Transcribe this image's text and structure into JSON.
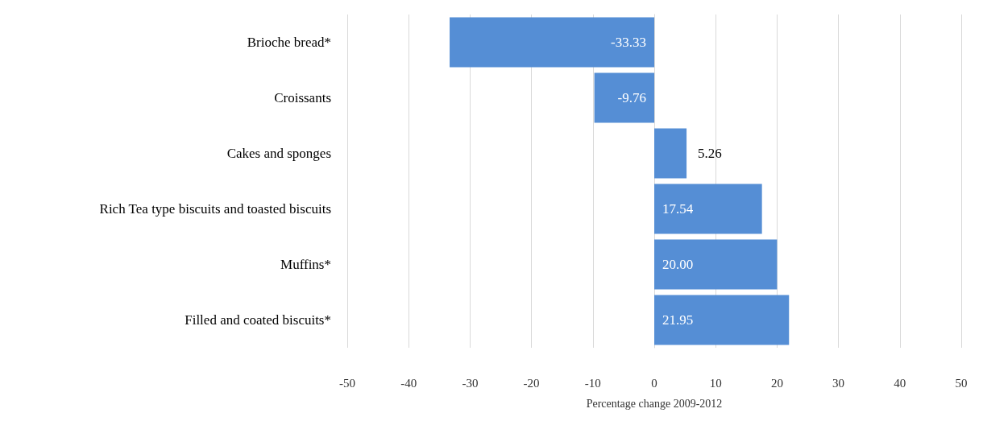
{
  "chart_data": {
    "type": "bar",
    "orientation": "horizontal",
    "xlabel": "Percentage change 2009-2012",
    "categories": [
      "Brioche bread*",
      "Croissants",
      "Cakes and sponges",
      "Rich Tea type biscuits and toasted biscuits",
      "Muffins*",
      "Filled and coated biscuits*"
    ],
    "values": [
      -33.33,
      -9.76,
      5.26,
      17.54,
      20,
      21.95
    ],
    "value_labels": [
      "-33.33",
      "-9.76",
      "5.26",
      "17.54",
      "20.00",
      "21.95"
    ],
    "color": "#558ed5",
    "xlim": [
      -50,
      50
    ],
    "xticks": [
      -50,
      -40,
      -30,
      -20,
      -10,
      0,
      10,
      20,
      30,
      40,
      50
    ],
    "grid": "x"
  }
}
